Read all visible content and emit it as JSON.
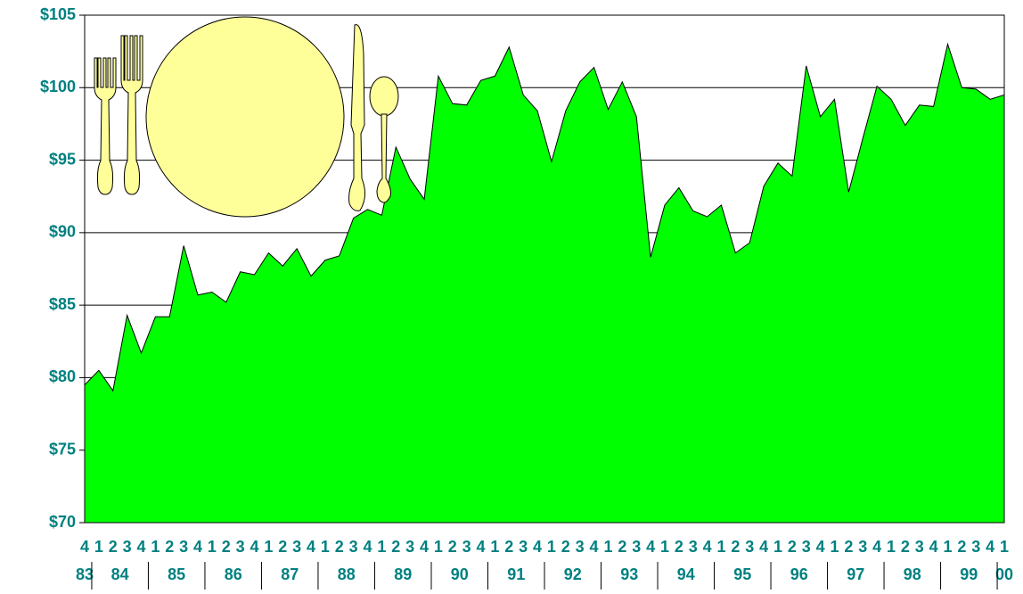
{
  "chart_data": {
    "type": "area",
    "color": "#00ff00",
    "grid": true,
    "categories": [
      "4",
      "1",
      "2",
      "3",
      "4",
      "1",
      "2",
      "3",
      "4",
      "1",
      "2",
      "3",
      "4",
      "1",
      "2",
      "3",
      "4",
      "1",
      "2",
      "3",
      "4",
      "1",
      "2",
      "3",
      "4",
      "1",
      "2",
      "3",
      "4",
      "1",
      "2",
      "3",
      "4",
      "1",
      "2",
      "3",
      "4",
      "1",
      "2",
      "3",
      "4",
      "1",
      "2",
      "3",
      "4",
      "1",
      "2",
      "3",
      "4",
      "1",
      "2",
      "3",
      "4",
      "1",
      "2",
      "3",
      "4",
      "1",
      "2",
      "3",
      "4",
      "1",
      "2",
      "3",
      "4",
      "1"
    ],
    "years": [
      "83",
      "84",
      "85",
      "86",
      "87",
      "88",
      "89",
      "90",
      "91",
      "92",
      "93",
      "94",
      "95",
      "96",
      "97",
      "98",
      "99",
      "00"
    ],
    "values": [
      79.5,
      80.5,
      79.1,
      84.3,
      81.7,
      84.2,
      84.2,
      89.1,
      85.7,
      85.9,
      85.2,
      87.3,
      87.1,
      88.6,
      87.7,
      88.9,
      87.0,
      88.1,
      88.4,
      91.0,
      91.6,
      91.2,
      95.9,
      93.7,
      92.3,
      100.8,
      98.9,
      98.8,
      100.5,
      100.8,
      102.8,
      99.5,
      98.4,
      94.9,
      98.4,
      100.4,
      101.4,
      98.5,
      100.4,
      98.0,
      88.3,
      91.9,
      93.1,
      91.5,
      91.1,
      91.9,
      88.6,
      89.3,
      93.2,
      94.8,
      93.9,
      101.5,
      98.0,
      99.2,
      92.8,
      96.5,
      100.1,
      99.2,
      97.4,
      98.8,
      98.7,
      103.0,
      100.0,
      99.9,
      99.2,
      99.5
    ],
    "ylim": [
      70,
      105
    ],
    "yticks": [
      {
        "value": 70,
        "label": "$70"
      },
      {
        "value": 75,
        "label": "$75"
      },
      {
        "value": 80,
        "label": "$80"
      },
      {
        "value": 85,
        "label": "$85"
      },
      {
        "value": 90,
        "label": "$90"
      },
      {
        "value": 95,
        "label": "$95"
      },
      {
        "value": 100,
        "label": "$100"
      },
      {
        "value": 105,
        "label": "$105"
      }
    ]
  }
}
